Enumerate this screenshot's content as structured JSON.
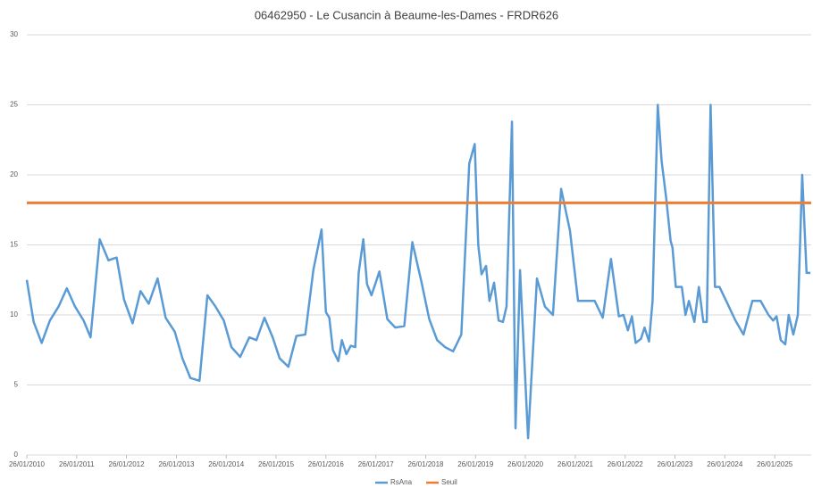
{
  "chart_data": {
    "type": "line",
    "title": "06462950 - Le Cusancin à Beaume-les-Dames - FRDR626",
    "xlim": [
      "2010-01-26",
      "2025-10-20"
    ],
    "xticks": [
      {
        "value": "2010-01-26",
        "label": "26/01/2010"
      },
      {
        "value": "2011-01-26",
        "label": "26/01/2011"
      },
      {
        "value": "2012-01-26",
        "label": "26/01/2012"
      },
      {
        "value": "2013-01-26",
        "label": "26/01/2013"
      },
      {
        "value": "2014-01-26",
        "label": "26/01/2014"
      },
      {
        "value": "2015-01-26",
        "label": "26/01/2015"
      },
      {
        "value": "2016-01-26",
        "label": "26/01/2016"
      },
      {
        "value": "2017-01-26",
        "label": "26/01/2017"
      },
      {
        "value": "2018-01-26",
        "label": "26/01/2018"
      },
      {
        "value": "2019-01-26",
        "label": "26/01/2019"
      },
      {
        "value": "2020-01-26",
        "label": "26/01/2020"
      },
      {
        "value": "2021-01-26",
        "label": "26/01/2021"
      },
      {
        "value": "2022-01-26",
        "label": "26/01/2022"
      },
      {
        "value": "2023-01-26",
        "label": "26/01/2023"
      },
      {
        "value": "2024-01-26",
        "label": "26/01/2024"
      },
      {
        "value": "2025-01-26",
        "label": "26/01/2025"
      }
    ],
    "ylim": [
      0,
      30
    ],
    "yticks": [
      0,
      5,
      10,
      15,
      20,
      25,
      30
    ],
    "grid": true,
    "legend": "bottom",
    "series": [
      {
        "name": "RsAna",
        "color": "#5b9bd5",
        "x": [
          "2010-01-26",
          "2010-03-17",
          "2010-05-15",
          "2010-07-14",
          "2010-09-16",
          "2010-11-15",
          "2011-01-14",
          "2011-03-18",
          "2011-05-08",
          "2011-07-14",
          "2011-09-16",
          "2011-11-15",
          "2012-01-08",
          "2012-03-11",
          "2012-05-08",
          "2012-07-07",
          "2012-09-10",
          "2012-11-08",
          "2013-01-14",
          "2013-03-11",
          "2013-05-08",
          "2013-07-14",
          "2013-09-10",
          "2013-11-08",
          "2014-01-08",
          "2014-03-05",
          "2014-05-08",
          "2014-07-14",
          "2014-09-04",
          "2014-11-02",
          "2015-01-01",
          "2015-02-21",
          "2015-04-26",
          "2015-06-24",
          "2015-08-28",
          "2015-10-26",
          "2015-12-25",
          "2016-01-26",
          "2016-02-20",
          "2016-03-17",
          "2016-04-26",
          "2016-05-22",
          "2016-06-24",
          "2016-07-26",
          "2016-08-28",
          "2016-09-22",
          "2016-10-26",
          "2016-11-22",
          "2016-12-25",
          "2017-02-21",
          "2017-04-20",
          "2017-06-17",
          "2017-08-22",
          "2017-10-20",
          "2017-12-25",
          "2018-02-21",
          "2018-04-20",
          "2018-06-17",
          "2018-08-15",
          "2018-10-14",
          "2018-12-11",
          "2019-01-20",
          "2019-02-15",
          "2019-03-11",
          "2019-04-13",
          "2019-05-08",
          "2019-06-11",
          "2019-07-14",
          "2019-08-15",
          "2019-09-10",
          "2019-10-20",
          "2019-11-15",
          "2019-12-18",
          "2020-02-15",
          "2020-04-20",
          "2020-06-17",
          "2020-08-15",
          "2020-10-14",
          "2020-12-18",
          "2021-02-15",
          "2021-04-13",
          "2021-06-17",
          "2021-08-15",
          "2021-10-14",
          "2021-12-11",
          "2022-01-14",
          "2022-02-15",
          "2022-03-17",
          "2022-04-13",
          "2022-05-22",
          "2022-06-17",
          "2022-07-20",
          "2022-08-15",
          "2022-09-22",
          "2022-10-20",
          "2022-11-22",
          "2022-12-25",
          "2023-01-08",
          "2023-02-01",
          "2023-03-17",
          "2023-04-13",
          "2023-05-08",
          "2023-06-17",
          "2023-07-20",
          "2023-08-22",
          "2023-09-16",
          "2023-10-14",
          "2023-11-15",
          "2023-12-18",
          "2024-02-15",
          "2024-04-13",
          "2024-06-11",
          "2024-08-15",
          "2024-10-14",
          "2024-12-11",
          "2025-01-14",
          "2025-02-08",
          "2025-03-11",
          "2025-04-13",
          "2025-05-08",
          "2025-06-11",
          "2025-07-14",
          "2025-08-15",
          "2025-09-16",
          "2025-10-14"
        ],
        "values": [
          12.5,
          9.5,
          8.0,
          9.6,
          10.6,
          11.9,
          10.6,
          9.6,
          8.4,
          15.4,
          13.9,
          14.1,
          11.1,
          9.4,
          11.7,
          10.8,
          12.6,
          9.8,
          8.8,
          6.9,
          5.5,
          5.3,
          11.4,
          10.6,
          9.6,
          7.7,
          7.0,
          8.4,
          8.2,
          9.8,
          8.4,
          6.9,
          6.3,
          8.5,
          8.6,
          13.2,
          16.1,
          10.2,
          9.8,
          7.5,
          6.7,
          8.2,
          7.2,
          7.8,
          7.7,
          13.0,
          15.4,
          12.2,
          11.4,
          13.1,
          9.7,
          9.1,
          9.2,
          15.2,
          12.4,
          9.7,
          8.2,
          7.7,
          7.4,
          8.6,
          20.8,
          22.2,
          15.0,
          12.9,
          13.5,
          11.0,
          12.3,
          9.6,
          9.5,
          10.6,
          23.8,
          1.9,
          13.2,
          1.2,
          12.6,
          10.6,
          10.0,
          19.0,
          16.0,
          11.0,
          11.0,
          11.0,
          9.8,
          14.0,
          9.9,
          10.0,
          8.9,
          9.9,
          8.0,
          8.3,
          9.1,
          8.1,
          11.0,
          25.0,
          21.0,
          18.4,
          15.3,
          14.8,
          12.0,
          12.0,
          10.0,
          11.0,
          9.5,
          12.0,
          9.5,
          9.5,
          25.0,
          12.0,
          12.0,
          10.8,
          9.6,
          8.6,
          11.0,
          11.0,
          10.0,
          9.6,
          9.9,
          8.2,
          7.9,
          10.0,
          8.6,
          10.0,
          20.0,
          13.0,
          13.0
        ]
      },
      {
        "name": "Seuil",
        "color": "#ed7d31",
        "x": [
          "2010-01-26",
          "2025-10-20"
        ],
        "values": [
          18,
          18
        ]
      }
    ]
  }
}
